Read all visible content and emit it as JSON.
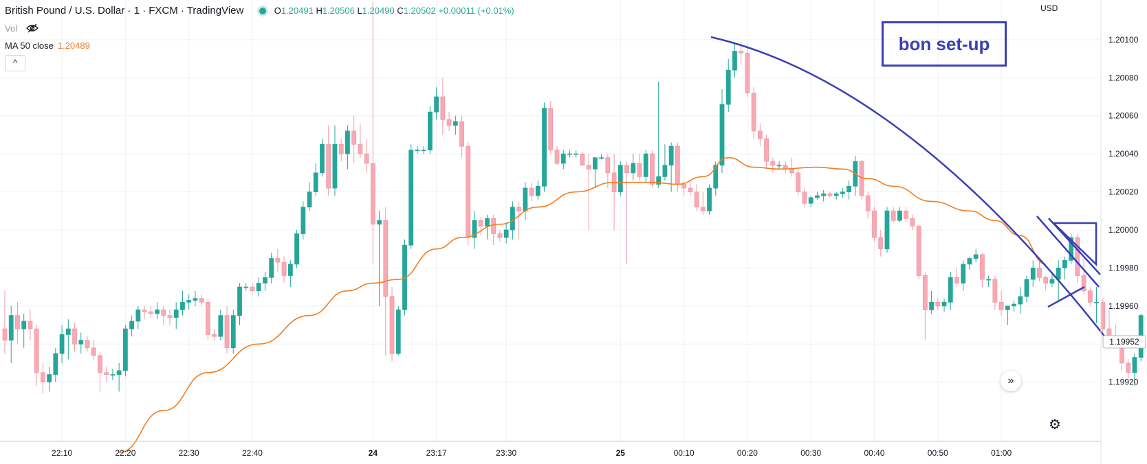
{
  "header": {
    "symbol_title": "British Pound / U.S. Dollar · 1 · FXCM · TradingView",
    "open_label": "O",
    "open": "1.20491",
    "high_label": "H",
    "high": "1.20506",
    "low_label": "L",
    "low": "1.20490",
    "close_label": "C",
    "close": "1.20502",
    "change": "+0.00011 (+0.01%)",
    "vol_label": "Vol",
    "ma_label": "MA 50 close",
    "ma_value": "1.20489",
    "collapse_icon": "^"
  },
  "price_scale": {
    "currency": "USD",
    "current_price_tag": "1.19952"
  },
  "annotation": {
    "text": "bon set-up",
    "color": "#3a3fb3"
  },
  "colors": {
    "up": "#26a69a",
    "down": "#ef5350",
    "ma": "#f57c1f",
    "drawing": "#3a3fb3",
    "grid": "#eef1f5"
  },
  "chart_data": {
    "type": "candlestick",
    "symbol": "GBPUSD",
    "y_ticks": [
      1.201,
      1.2008,
      1.2006,
      1.2004,
      1.2002,
      1.2,
      1.1998,
      1.1996,
      1.1994,
      1.1992
    ],
    "y_tick_labels": [
      "1.20100",
      "1.20080",
      "1.20060",
      "1.20040",
      "1.20020",
      "1.20000",
      "1.19980",
      "1.19960",
      "1.19940",
      "1.19920"
    ],
    "ylim": [
      1.19904,
      1.20118
    ],
    "x_tick_labels": [
      "22:10",
      "22:20",
      "22:30",
      "22:40",
      "24",
      "23:17",
      "23:30",
      "25",
      "00:10",
      "00:20",
      "00:30",
      "00:40",
      "00:50",
      "01:00"
    ],
    "x_tick_bar_index": [
      9,
      19,
      29,
      39,
      58,
      68,
      79,
      97,
      107,
      117,
      127,
      137,
      147,
      157
    ],
    "candles": [
      [
        1.19948,
        1.19968,
        1.19935,
        1.19942
      ],
      [
        1.19942,
        1.1996,
        1.1993,
        1.19955
      ],
      [
        1.19955,
        1.19962,
        1.1994,
        1.19948
      ],
      [
        1.19948,
        1.19956,
        1.19938,
        1.19952
      ],
      [
        1.19952,
        1.19958,
        1.19942,
        1.19948
      ],
      [
        1.19948,
        1.1995,
        1.19918,
        1.19925
      ],
      [
        1.19925,
        1.1993,
        1.19914,
        1.1992
      ],
      [
        1.1992,
        1.19928,
        1.19915,
        1.19924
      ],
      [
        1.19924,
        1.19938,
        1.1992,
        1.19935
      ],
      [
        1.19935,
        1.1995,
        1.1993,
        1.19945
      ],
      [
        1.19945,
        1.19953,
        1.19932,
        1.19948
      ],
      [
        1.19948,
        1.19951,
        1.19936,
        1.1994
      ],
      [
        1.1994,
        1.19946,
        1.19935,
        1.19942
      ],
      [
        1.19942,
        1.19944,
        1.19936,
        1.19938
      ],
      [
        1.19938,
        1.19942,
        1.19932,
        1.19934
      ],
      [
        1.19934,
        1.19936,
        1.19915,
        1.19925
      ],
      [
        1.19925,
        1.19928,
        1.1992,
        1.19924
      ],
      [
        1.19924,
        1.19927,
        1.19921,
        1.19924
      ],
      [
        1.19924,
        1.1993,
        1.19915,
        1.19926
      ],
      [
        1.19926,
        1.1995,
        1.19923,
        1.19948
      ],
      [
        1.19948,
        1.19955,
        1.19944,
        1.19952
      ],
      [
        1.19952,
        1.1996,
        1.19948,
        1.19958
      ],
      [
        1.19958,
        1.1996,
        1.19953,
        1.19957
      ],
      [
        1.19957,
        1.1996,
        1.19954,
        1.19956
      ],
      [
        1.19956,
        1.19962,
        1.19953,
        1.19958
      ],
      [
        1.19958,
        1.1996,
        1.1995,
        1.19955
      ],
      [
        1.19955,
        1.19958,
        1.1995,
        1.19954
      ],
      [
        1.19954,
        1.19962,
        1.19948,
        1.19958
      ],
      [
        1.19958,
        1.19968,
        1.19955,
        1.19962
      ],
      [
        1.19962,
        1.19966,
        1.19958,
        1.19963
      ],
      [
        1.19963,
        1.19968,
        1.1996,
        1.19964
      ],
      [
        1.19964,
        1.19966,
        1.1996,
        1.19962
      ],
      [
        1.19962,
        1.19964,
        1.19942,
        1.19945
      ],
      [
        1.19945,
        1.19948,
        1.19942,
        1.19944
      ],
      [
        1.19944,
        1.19958,
        1.19942,
        1.19955
      ],
      [
        1.19955,
        1.1996,
        1.19935,
        1.19938
      ],
      [
        1.19938,
        1.19958,
        1.19935,
        1.19955
      ],
      [
        1.19955,
        1.19972,
        1.1995,
        1.1997
      ],
      [
        1.1997,
        1.19972,
        1.19968,
        1.1997
      ],
      [
        1.1997,
        1.19972,
        1.19966,
        1.19968
      ],
      [
        1.19968,
        1.19975,
        1.19965,
        1.19972
      ],
      [
        1.19972,
        1.19978,
        1.19968,
        1.19975
      ],
      [
        1.19975,
        1.19988,
        1.19972,
        1.19985
      ],
      [
        1.19985,
        1.1999,
        1.19978,
        1.19983
      ],
      [
        1.19983,
        1.19986,
        1.19972,
        1.19976
      ],
      [
        1.19976,
        1.19984,
        1.1997,
        1.19982
      ],
      [
        1.19982,
        1.2,
        1.1998,
        1.19998
      ],
      [
        1.19998,
        1.20015,
        1.19995,
        1.20012
      ],
      [
        1.20012,
        1.20025,
        1.2001,
        1.2002
      ],
      [
        1.2002,
        1.20035,
        1.20018,
        1.2003
      ],
      [
        1.2003,
        1.20048,
        1.20028,
        1.20045
      ],
      [
        1.20045,
        1.20055,
        1.20018,
        1.20022
      ],
      [
        1.20022,
        1.20055,
        1.20018,
        1.20045
      ],
      [
        1.20045,
        1.20048,
        1.20036,
        1.2004
      ],
      [
        1.2004,
        1.20055,
        1.20032,
        1.20052
      ],
      [
        1.20052,
        1.2006,
        1.20035,
        1.20045
      ],
      [
        1.20045,
        1.20056,
        1.20038,
        1.2004
      ],
      [
        1.2004,
        1.20048,
        1.2003,
        1.20035
      ],
      [
        1.20035,
        1.2012,
        1.19982,
        1.20003
      ],
      [
        1.20003,
        1.2001,
        1.1996,
        1.20005
      ],
      [
        1.20005,
        1.20012,
        1.19934,
        1.19965
      ],
      [
        1.19965,
        1.1997,
        1.19931,
        1.19935
      ],
      [
        1.19935,
        1.1996,
        1.19934,
        1.19958
      ],
      [
        1.19958,
        1.19995,
        1.19955,
        1.19992
      ],
      [
        1.19992,
        1.20045,
        1.1999,
        1.20042
      ],
      [
        1.20042,
        1.20044,
        1.2004,
        1.20042
      ],
      [
        1.20042,
        1.20044,
        1.2004,
        1.20042
      ],
      [
        1.20042,
        1.20065,
        1.2004,
        1.20062
      ],
      [
        1.20062,
        1.20075,
        1.20058,
        1.2007
      ],
      [
        1.2007,
        1.2008,
        1.2005,
        1.20058
      ],
      [
        1.20058,
        1.20062,
        1.20052,
        1.20055
      ],
      [
        1.20055,
        1.2006,
        1.2005,
        1.20057
      ],
      [
        1.20057,
        1.2006,
        1.20038,
        1.20044
      ],
      [
        1.20044,
        1.20046,
        1.19992,
        1.19996
      ],
      [
        1.19996,
        1.2001,
        1.1999,
        1.20005
      ],
      [
        1.20005,
        1.20007,
        1.19997,
        1.20002
      ],
      [
        1.20002,
        1.20008,
        1.19995,
        1.20006
      ],
      [
        1.20006,
        1.20008,
        1.19992,
        1.19998
      ],
      [
        1.19998,
        1.2,
        1.19994,
        1.19996
      ],
      [
        1.19996,
        1.20004,
        1.19993,
        1.2
      ],
      [
        1.2,
        1.20015,
        1.19995,
        1.20012
      ],
      [
        1.20012,
        1.20015,
        1.19995,
        1.2001
      ],
      [
        1.2001,
        1.20025,
        1.20005,
        1.20022
      ],
      [
        1.20022,
        1.20025,
        1.20015,
        1.20018
      ],
      [
        1.20018,
        1.20026,
        1.20016,
        1.20023
      ],
      [
        1.20023,
        1.20067,
        1.2002,
        1.20064
      ],
      [
        1.20064,
        1.20068,
        1.2004,
        1.20042
      ],
      [
        1.20042,
        1.20044,
        1.20034,
        1.20035
      ],
      [
        1.20035,
        1.20042,
        1.20032,
        1.2004
      ],
      [
        1.2004,
        1.20042,
        1.20038,
        1.2004
      ],
      [
        1.2004,
        1.20042,
        1.20038,
        1.2004
      ],
      [
        1.2004,
        1.20041,
        1.20034,
        1.20034
      ],
      [
        1.20034,
        1.2004,
        1.2,
        1.20032
      ],
      [
        1.20032,
        1.20038,
        1.20022,
        1.20038
      ],
      [
        1.20038,
        1.2004,
        1.20037,
        1.20038
      ],
      [
        1.20038,
        1.2004,
        1.20022,
        1.2003
      ],
      [
        1.2003,
        1.2004,
        1.2,
        1.2002
      ],
      [
        1.2002,
        1.20036,
        1.20018,
        1.20034
      ],
      [
        1.20034,
        1.20036,
        1.19982,
        1.2003
      ],
      [
        1.2003,
        1.2004,
        1.20026,
        1.20035
      ],
      [
        1.20035,
        1.2004,
        1.20026,
        1.20028
      ],
      [
        1.20028,
        1.20042,
        1.20025,
        1.2004
      ],
      [
        1.2004,
        1.20042,
        1.20022,
        1.20024
      ],
      [
        1.20024,
        1.20078,
        1.20022,
        1.20028
      ],
      [
        1.20028,
        1.20045,
        1.20026,
        1.20034
      ],
      [
        1.20034,
        1.20046,
        1.2002,
        1.20044
      ],
      [
        1.20044,
        1.20046,
        1.2002,
        1.20024
      ],
      [
        1.20024,
        1.20026,
        1.20018,
        1.20022
      ],
      [
        1.20022,
        1.20026,
        1.20018,
        1.2002
      ],
      [
        1.2002,
        1.20024,
        1.2001,
        1.20012
      ],
      [
        1.20012,
        1.2002,
        1.20008,
        1.2001
      ],
      [
        1.2001,
        1.20024,
        1.20008,
        1.20022
      ],
      [
        1.20022,
        1.20036,
        1.20018,
        1.20034
      ],
      [
        1.20034,
        1.20074,
        1.2003,
        1.20066
      ],
      [
        1.20066,
        1.2009,
        1.20062,
        1.20084
      ],
      [
        1.20084,
        1.20098,
        1.2008,
        1.20094
      ],
      [
        1.20094,
        1.20099,
        1.20087,
        1.20093
      ],
      [
        1.20093,
        1.20098,
        1.2007,
        1.20072
      ],
      [
        1.20072,
        1.20075,
        1.20048,
        1.20052
      ],
      [
        1.20052,
        1.20056,
        1.20044,
        1.20048
      ],
      [
        1.20048,
        1.2005,
        1.20032,
        1.20036
      ],
      [
        1.20036,
        1.20038,
        1.2003,
        1.20034
      ],
      [
        1.20034,
        1.20036,
        1.20032,
        1.20034
      ],
      [
        1.20034,
        1.20036,
        1.2003,
        1.20032
      ],
      [
        1.20032,
        1.20038,
        1.20028,
        1.2003
      ],
      [
        1.2003,
        1.20032,
        1.20018,
        1.2002
      ],
      [
        1.2002,
        1.20022,
        1.20012,
        1.20014
      ],
      [
        1.20014,
        1.20018,
        1.20012,
        1.20017
      ],
      [
        1.20017,
        1.2002,
        1.20016,
        1.20018
      ],
      [
        1.20018,
        1.20021,
        1.20015,
        1.20019
      ],
      [
        1.20019,
        1.2002,
        1.20017,
        1.20018
      ],
      [
        1.20018,
        1.2002,
        1.20016,
        1.20019
      ],
      [
        1.20019,
        1.20022,
        1.20017,
        1.2002
      ],
      [
        1.2002,
        1.20026,
        1.20016,
        1.20023
      ],
      [
        1.20023,
        1.20039,
        1.20018,
        1.20036
      ],
      [
        1.20036,
        1.20037,
        1.20016,
        1.20018
      ],
      [
        1.20018,
        1.2002,
        1.20006,
        1.2001
      ],
      [
        1.2001,
        1.20012,
        1.19994,
        1.19996
      ],
      [
        1.19996,
        1.2,
        1.19986,
        1.1999
      ],
      [
        1.1999,
        1.20012,
        1.19988,
        1.2001
      ],
      [
        1.2001,
        1.20012,
        1.20004,
        1.20005
      ],
      [
        1.20005,
        1.20012,
        1.20004,
        1.2001
      ],
      [
        1.2001,
        1.20012,
        1.20004,
        1.20006
      ],
      [
        1.20006,
        1.20008,
        1.2,
        1.20002
      ],
      [
        1.20002,
        1.20003,
        1.19974,
        1.19976
      ],
      [
        1.19976,
        1.19978,
        1.19942,
        1.19958
      ],
      [
        1.19958,
        1.19968,
        1.19956,
        1.19962
      ],
      [
        1.19962,
        1.19964,
        1.19958,
        1.1996
      ],
      [
        1.1996,
        1.19964,
        1.19957,
        1.19962
      ],
      [
        1.19962,
        1.19978,
        1.19958,
        1.19975
      ],
      [
        1.19975,
        1.1998,
        1.1997,
        1.19972
      ],
      [
        1.19972,
        1.19984,
        1.19968,
        1.19982
      ],
      [
        1.19982,
        1.19986,
        1.19979,
        1.19985
      ],
      [
        1.19985,
        1.1999,
        1.19983,
        1.19987
      ],
      [
        1.19987,
        1.19988,
        1.1997,
        1.19974
      ],
      [
        1.19974,
        1.19976,
        1.1997,
        1.19974
      ],
      [
        1.19974,
        1.19976,
        1.19958,
        1.19962
      ],
      [
        1.19962,
        1.19968,
        1.19955,
        1.19958
      ],
      [
        1.19958,
        1.1996,
        1.1995,
        1.1996
      ],
      [
        1.1996,
        1.19963,
        1.19957,
        1.19961
      ],
      [
        1.19961,
        1.1997,
        1.19956,
        1.19965
      ],
      [
        1.19965,
        1.19976,
        1.19962,
        1.19974
      ],
      [
        1.19974,
        1.19984,
        1.1997,
        1.1998
      ],
      [
        1.1998,
        1.19983,
        1.19973,
        1.19975
      ],
      [
        1.19975,
        1.19976,
        1.19968,
        1.19972
      ],
      [
        1.19972,
        1.19978,
        1.1997,
        1.19974
      ],
      [
        1.19974,
        1.19984,
        1.19962,
        1.1998
      ],
      [
        1.1998,
        1.19986,
        1.19974,
        1.19984
      ],
      [
        1.19984,
        1.19998,
        1.19982,
        1.19996
      ],
      [
        1.19996,
        1.19998,
        1.19972,
        1.19976
      ],
      [
        1.19976,
        1.19985,
        1.19966,
        1.19968
      ],
      [
        1.19968,
        1.1997,
        1.1996,
        1.19962
      ],
      [
        1.19962,
        1.1997,
        1.19951,
        1.19962
      ],
      [
        1.19962,
        1.19964,
        1.19946,
        1.19948
      ],
      [
        1.19948,
        1.19958,
        1.1994,
        1.19942
      ],
      [
        1.19942,
        1.1995,
        1.19938,
        1.1994
      ],
      [
        1.1994,
        1.19942,
        1.19926,
        1.1993
      ],
      [
        1.1993,
        1.19932,
        1.19922,
        1.19925
      ],
      [
        1.19925,
        1.19935,
        1.19918,
        1.19933
      ],
      [
        1.19933,
        1.19956,
        1.19931,
        1.19955
      ]
    ],
    "ma_label": "MA 50 close",
    "ma_points": [
      [
        18,
        1.19883
      ],
      [
        25,
        1.19905
      ],
      [
        32,
        1.19925
      ],
      [
        40,
        1.1994
      ],
      [
        48,
        1.19955
      ],
      [
        54,
        1.19968
      ],
      [
        58,
        1.19972
      ],
      [
        62,
        1.19974
      ],
      [
        68,
        1.1999
      ],
      [
        72,
        1.19996
      ],
      [
        78,
        1.20003
      ],
      [
        84,
        1.20012
      ],
      [
        90,
        1.2002
      ],
      [
        96,
        1.20025
      ],
      [
        102,
        1.20025
      ],
      [
        106,
        1.20024
      ],
      [
        110,
        1.20028
      ],
      [
        114,
        1.20038
      ],
      [
        118,
        1.20033
      ],
      [
        122,
        1.20032
      ],
      [
        128,
        1.20033
      ],
      [
        132,
        1.20032
      ],
      [
        136,
        1.20027
      ],
      [
        140,
        1.20023
      ],
      [
        146,
        1.20015
      ],
      [
        152,
        1.2001
      ],
      [
        156,
        1.20005
      ],
      [
        160,
        1.19997
      ],
      [
        164,
        1.19982
      ]
    ]
  }
}
